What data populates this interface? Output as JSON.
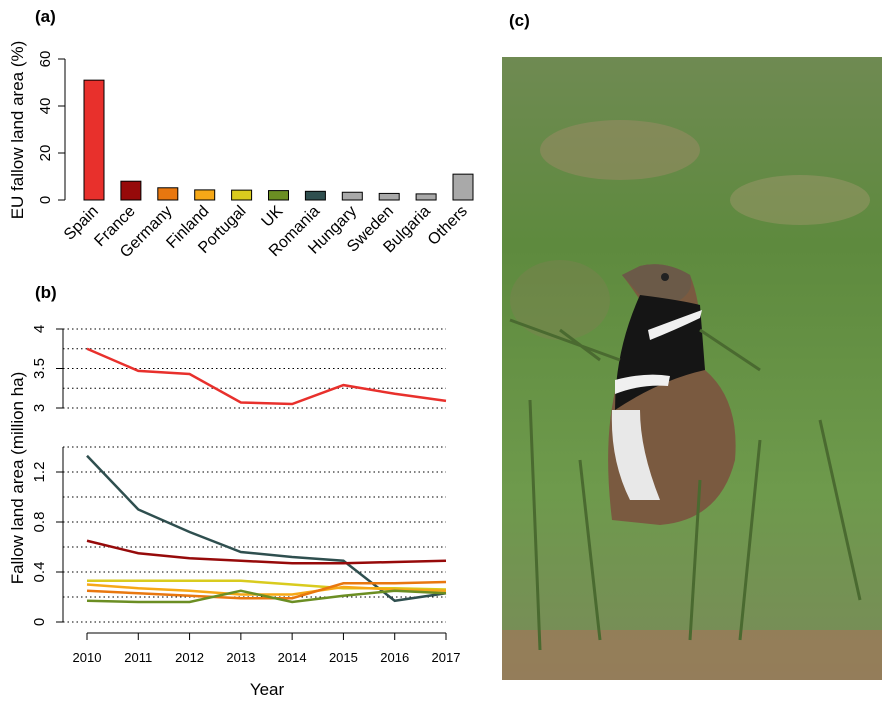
{
  "chart_data": [
    {
      "type": "bar",
      "panel": "(a)",
      "ylabel": "EU fallow land area (%)",
      "categories": [
        "Spain",
        "France",
        "Germany",
        "Finland",
        "Portugal",
        "UK",
        "Romania",
        "Hungary",
        "Sweden",
        "Bulgaria",
        "Others"
      ],
      "values": [
        51,
        8,
        5.2,
        4.3,
        4.2,
        4.0,
        3.7,
        3.3,
        2.8,
        2.6,
        11
      ],
      "colors": [
        "#e8302c",
        "#960a0a",
        "#e8770f",
        "#f6a817",
        "#d9cb1e",
        "#6b8e23",
        "#2f4f4f",
        "#a9a9a9",
        "#a9a9a9",
        "#a9a9a9",
        "#a9a9a9"
      ],
      "ylim": [
        0,
        60
      ],
      "yticks": [
        0,
        20,
        40,
        60
      ]
    },
    {
      "type": "line",
      "panel": "(b)",
      "xlabel": "Year",
      "ylabel": "Fallow land area (million ha)",
      "x": [
        2010,
        2011,
        2012,
        2013,
        2014,
        2015,
        2016,
        2017
      ],
      "xlim": [
        2010,
        2017
      ],
      "xticks": [
        2010,
        2011,
        2012,
        2013,
        2014,
        2015,
        2016,
        2017
      ],
      "ylim": [
        0,
        1.4
      ],
      "yticks": [
        0,
        0.4,
        0.8,
        1.2
      ],
      "ygrid": [
        0,
        0.2,
        0.4,
        0.6,
        0.8,
        1.0,
        1.2,
        1.4
      ],
      "y2lim": [
        3,
        4
      ],
      "y2ticks": [
        3,
        3.5,
        4
      ],
      "y2grid": [
        3,
        3.25,
        3.5,
        3.75,
        4
      ],
      "series": [
        {
          "color": "#e8302c",
          "axis": "y2",
          "values": [
            3.75,
            3.47,
            3.43,
            3.07,
            3.05,
            3.29,
            3.18,
            3.09
          ]
        },
        {
          "color": "#2f4f4f",
          "values": [
            1.33,
            0.9,
            0.72,
            0.56,
            0.52,
            0.49,
            0.17,
            0.23
          ]
        },
        {
          "color": "#960a0a",
          "values": [
            0.65,
            0.55,
            0.51,
            0.49,
            0.47,
            0.47,
            0.48,
            0.49
          ]
        },
        {
          "color": "#d9cb1e",
          "values": [
            0.33,
            0.33,
            0.33,
            0.33,
            0.3,
            0.27,
            0.27,
            0.26
          ]
        },
        {
          "color": "#f6a817",
          "values": [
            0.3,
            0.27,
            0.25,
            0.22,
            0.22,
            0.28,
            0.26,
            0.25
          ]
        },
        {
          "color": "#e8770f",
          "values": [
            0.25,
            0.23,
            0.21,
            0.19,
            0.19,
            0.31,
            0.31,
            0.32
          ]
        },
        {
          "color": "#6b8e23",
          "values": [
            0.17,
            0.16,
            0.16,
            0.25,
            0.16,
            0.21,
            0.25,
            0.23
          ]
        }
      ]
    }
  ],
  "photo": {
    "panel": "(c)"
  }
}
